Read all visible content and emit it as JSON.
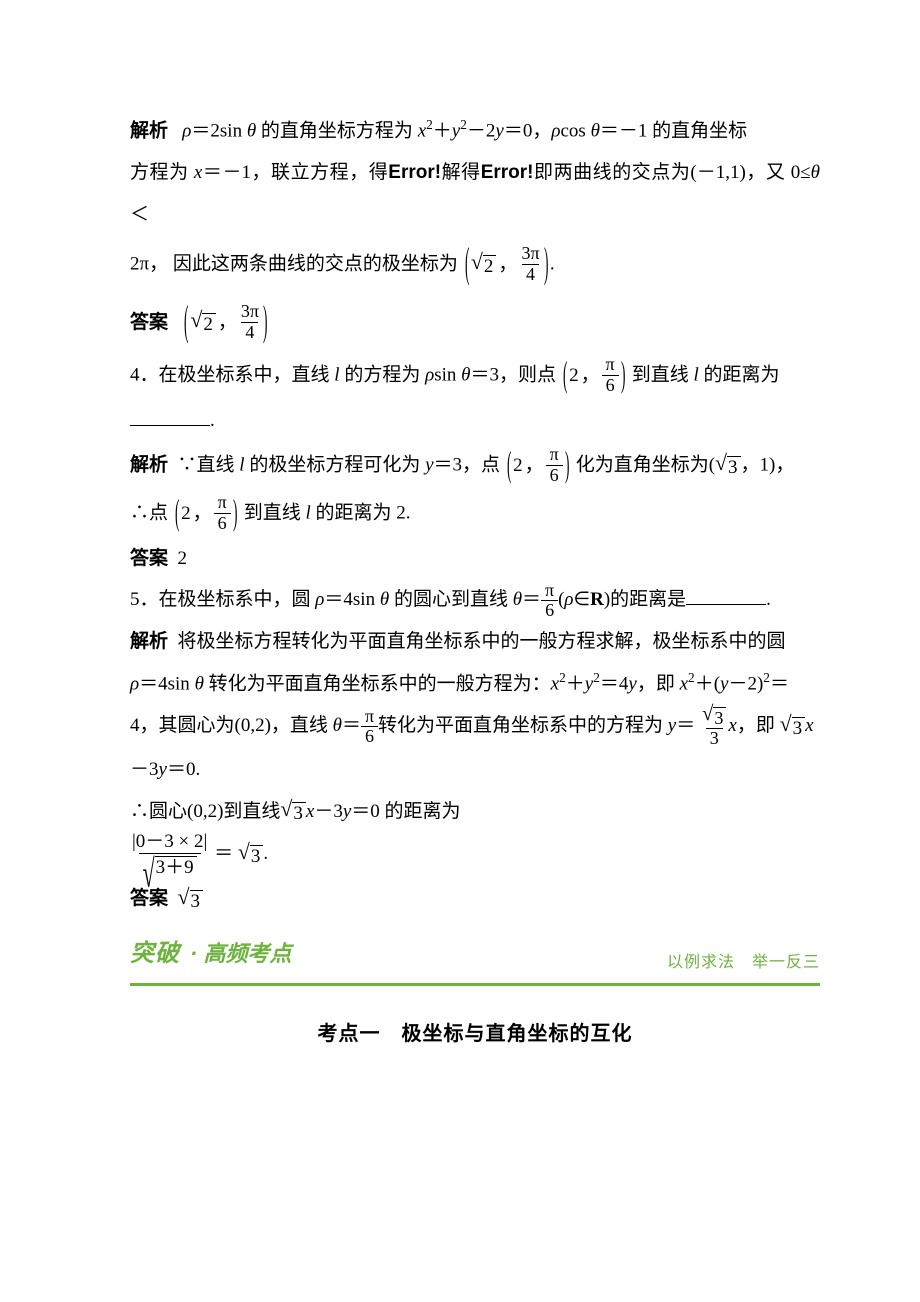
{
  "colors": {
    "text": "#000000",
    "green": "#6fb33f",
    "bannerBorder": "#6fb33f",
    "bannerRight": "#6fb33f"
  },
  "p1": {
    "label": "解析",
    "t1": "ρ",
    "t2": "＝2sin ",
    "t3": "θ",
    "t4": " 的直角坐标方程为 ",
    "eq1a": "x",
    "eq1b": "2",
    "eq1c": "＋",
    "eq1d": "y",
    "eq1e": "2",
    "eq1f": "－2",
    "eq1g": "y",
    "eq1h": "＝0，",
    "t5": "ρ",
    "t6": "cos ",
    "t7": "θ",
    "t8": "＝－1 的直角坐标"
  },
  "p2": {
    "t1": "方程为 ",
    "t2": "x",
    "t3": "＝－1，联立方程，得",
    "err1": "Error!",
    "t4": "解得",
    "err2": "Error!",
    "t5": "即两曲线的交点为(－1,1)，又 0≤",
    "t6": "θ",
    "t7": "＜"
  },
  "p3": {
    "t1": "2π，  因此这两条曲线的交点的极坐标为",
    "coord_a": "2",
    "coord_comma": "，",
    "coord_num": "3π",
    "coord_den": "4",
    "period": "."
  },
  "ans1": {
    "label": "答案",
    "a": "2",
    "comma": "，",
    "num": "3π",
    "den": "4"
  },
  "q4": {
    "num": "4．",
    "t1": "在极坐标系中，直线 ",
    "l": "l",
    "t2": " 的方程为 ",
    "rho": "ρ",
    "t3": "sin ",
    "theta": "θ",
    "t4": "＝3，则点",
    "c_a": "2",
    "c_comma": "，",
    "c_num": "π",
    "c_den": "6",
    "t5": "到直线 ",
    "l2": "l",
    "t6": " 的距离为"
  },
  "q4b": {
    "period": "."
  },
  "sol4a": {
    "label": "解析",
    "t1": "∵直线 ",
    "l": "l",
    "t2": " 的极坐标方程可化为 ",
    "y": "y",
    "t3": "＝3，点",
    "c_a": "2",
    "c_comma": "，",
    "c_num": "π",
    "c_den": "6",
    "t4": "化为直角坐标为(",
    "root": "3",
    "t5": "，1)，"
  },
  "sol4b": {
    "t1": "∴点",
    "c_a": "2",
    "c_comma": "，",
    "c_num": "π",
    "c_den": "6",
    "t2": "到直线 ",
    "l": "l",
    "t3": " 的距离为 2."
  },
  "ans4": {
    "label": "答案",
    "val": "2"
  },
  "q5": {
    "num": "5．",
    "t1": "在极坐标系中，圆 ",
    "rho": "ρ",
    "t2": "＝4sin ",
    "theta": "θ",
    "t3": " 的圆心到直线 ",
    "theta2": "θ",
    "t4": "＝",
    "f_num": "π",
    "f_den": "6",
    "t5": "(",
    "rho2": "ρ",
    "t6": "∈",
    "R": "R",
    "t7": ")的距离是",
    "period": "."
  },
  "sol5a": {
    "label": "解析",
    "t1": "将极坐标方程转化为平面直角坐标系中的一般方程求解，极坐标系中的圆"
  },
  "sol5b": {
    "rho": "ρ",
    "t1": "＝4sin ",
    "theta": "θ",
    "t2": " 转化为平面直角坐标系中的一般方程为：",
    "x": "x",
    "sq1": "2",
    "plus": "＋",
    "y": "y",
    "sq2": "2",
    "eq": "＝4",
    "y2": "y",
    "t3": "，即 ",
    "x2": "x",
    "sq3": "2",
    "plus2": "＋(",
    "y3": "y",
    "t4": "－2)",
    "sq4": "2",
    "eq2": "＝"
  },
  "sol5c": {
    "t1": "4，其圆心为(0,2)，直线 ",
    "theta": "θ",
    "eq": "＝",
    "f_num": "π",
    "f_den": "6",
    "t2": "转化为平面直角坐标系中的方程为 ",
    "y": "y",
    "eq2": "＝",
    "r_num": "3",
    "r_den": "3",
    "x": "x",
    "t3": "，即",
    "root": "3",
    "x2": "x"
  },
  "sol5d": {
    "t1": "－3",
    "y": "y",
    "t2": "＝0."
  },
  "sol5e": {
    "t1": "∴圆心(0,2)到直线",
    "root": "3",
    "x": "x",
    "t2": "－3",
    "y": "y",
    "t3": "＝0 的距离为"
  },
  "sol5f": {
    "num": "|0－3 × 2|",
    "den_pre": "",
    "den_inner": "3＋9",
    "eq": "＝",
    "root": "3",
    "period": "."
  },
  "ans5": {
    "label": "答案",
    "root": "3"
  },
  "banner": {
    "big": "突破",
    "dot": "·",
    "sub": "高频考点",
    "right": "以例求法　举一反三"
  },
  "topic": "考点一　极坐标与直角坐标的互化"
}
